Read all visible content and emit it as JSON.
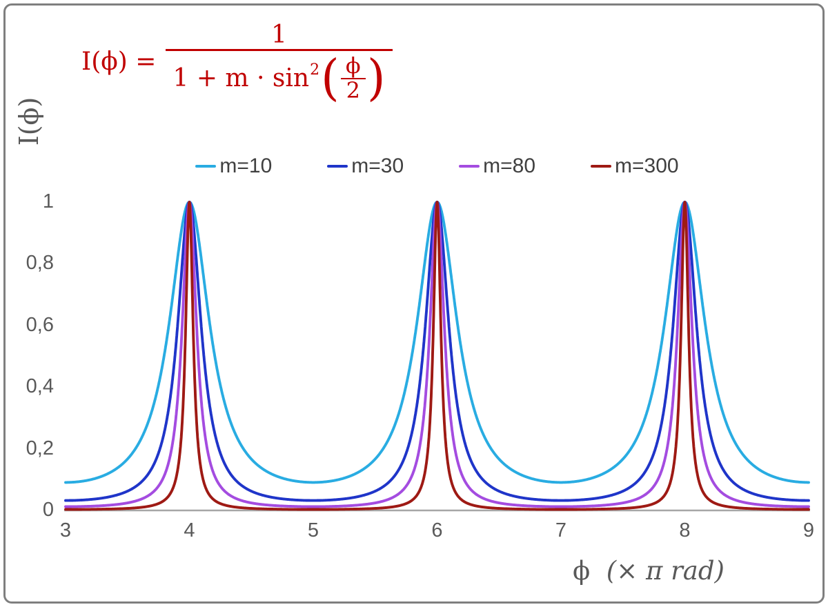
{
  "figure": {
    "background": "#ffffff",
    "border_color": "#7f7f7f",
    "text_color": "#595959",
    "formula": {
      "lhs": "I(ϕ) =",
      "numerator": "1",
      "denominator_prefix": "1 + m · sin",
      "denominator_sup": "2",
      "open_paren": "(",
      "inner_numerator": "ϕ",
      "inner_denominator": "2",
      "close_paren": ")",
      "color": "#C00000"
    },
    "y_axis_title": "I(ϕ)",
    "x_axis_title": {
      "symbol": "ϕ",
      "unit": "(× π rad)"
    }
  },
  "chart_data": {
    "type": "line",
    "title": "",
    "formula": "I(phi) = 1 / (1 + m * sin^2(phi / 2))",
    "xlabel": "ϕ (× π rad)",
    "ylabel": "I(ϕ)",
    "x_range": [
      3,
      9
    ],
    "y_range": [
      0,
      1.6
    ],
    "x_unit": "multiples of π rad",
    "grid": false,
    "legend_position": "top-center",
    "axis_color": "#a6a6a6",
    "x_ticks": [
      {
        "value": 3,
        "label": "3"
      },
      {
        "value": 4,
        "label": "4"
      },
      {
        "value": 5,
        "label": "5"
      },
      {
        "value": 6,
        "label": "6"
      },
      {
        "value": 7,
        "label": "7"
      },
      {
        "value": 8,
        "label": "8"
      },
      {
        "value": 9,
        "label": "9"
      }
    ],
    "y_ticks": [
      {
        "value": 0,
        "label": "0"
      },
      {
        "value": 0.2,
        "label": "0,2"
      },
      {
        "value": 0.4,
        "label": "0,4"
      },
      {
        "value": 0.6,
        "label": "0,6"
      },
      {
        "value": 0.8,
        "label": "0,8"
      },
      {
        "value": 1,
        "label": "1"
      }
    ],
    "series": [
      {
        "name": "m=10",
        "m": 10,
        "color": "#29ACE2"
      },
      {
        "name": "m=30",
        "m": 30,
        "color": "#1F35C9"
      },
      {
        "name": "m=80",
        "m": 80,
        "color": "#A44CE0"
      },
      {
        "name": "m=300",
        "m": 300,
        "color": "#9E1A14"
      }
    ],
    "peak_value": 1,
    "peaks_at_x": [
      4,
      6,
      8
    ]
  }
}
